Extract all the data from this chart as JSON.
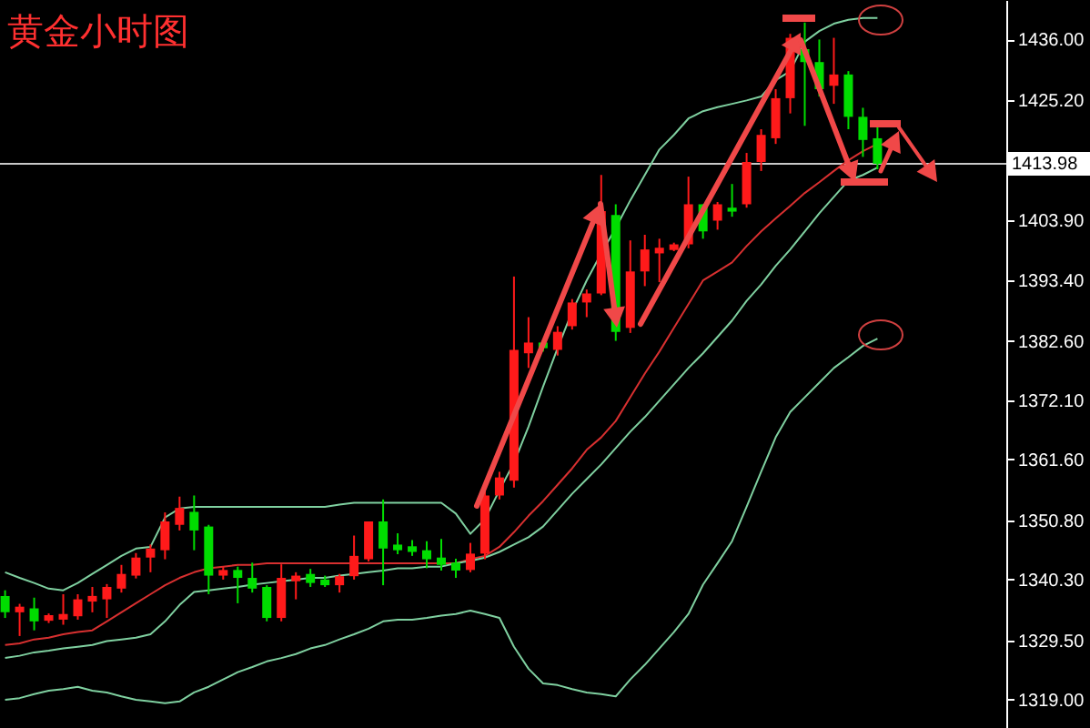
{
  "chart_data": {
    "type": "candlestick",
    "title": "黄金小时图",
    "categories": [
      null,
      null,
      null,
      null,
      null,
      null,
      null,
      null,
      null,
      null,
      null,
      null,
      null,
      null,
      null,
      null,
      null,
      null,
      null,
      null,
      null,
      null,
      null,
      null,
      null,
      null,
      null,
      null,
      null,
      null,
      null,
      null,
      null,
      null,
      null,
      null,
      null,
      null,
      null,
      null,
      null,
      null,
      null,
      null,
      null,
      null,
      null,
      null,
      null,
      null,
      null,
      null,
      null,
      null,
      null,
      null,
      null,
      null,
      null,
      null,
      null
    ],
    "ohlc": [
      [
        1337.4,
        1338.4,
        1333.5,
        1334.5
      ],
      [
        1334.5,
        1336.0,
        1330.3,
        1335.5
      ],
      [
        1335.2,
        1337.1,
        1331.3,
        1332.9
      ],
      [
        1333.0,
        1334.3,
        1332.6,
        1334.0
      ],
      [
        1333.2,
        1337.7,
        1332.3,
        1334.2
      ],
      [
        1333.8,
        1337.7,
        1333.2,
        1336.8
      ],
      [
        1336.4,
        1339.0,
        1334.5,
        1337.4
      ],
      [
        1336.8,
        1339.5,
        1333.5,
        1339.0
      ],
      [
        1338.7,
        1342.9,
        1338.0,
        1341.3
      ],
      [
        1341.0,
        1345.0,
        1340.5,
        1344.2
      ],
      [
        1344.2,
        1346.5,
        1341.6,
        1345.8
      ],
      [
        1345.5,
        1352.2,
        1343.9,
        1350.6
      ],
      [
        1350.0,
        1355.0,
        1349.0,
        1353.0
      ],
      [
        1352.3,
        1355.2,
        1345.5,
        1349.0
      ],
      [
        1349.7,
        1350.0,
        1337.7,
        1341.0
      ],
      [
        1341.0,
        1342.6,
        1340.3,
        1342.0
      ],
      [
        1342.0,
        1342.6,
        1336.1,
        1340.6
      ],
      [
        1340.6,
        1343.3,
        1338.0,
        1338.7
      ],
      [
        1339.0,
        1339.3,
        1332.9,
        1333.5
      ],
      [
        1333.5,
        1343.0,
        1332.9,
        1340.6
      ],
      [
        1340.0,
        1341.6,
        1336.8,
        1341.0
      ],
      [
        1341.3,
        1342.2,
        1339.0,
        1339.7
      ],
      [
        1340.3,
        1341.0,
        1339.0,
        1339.3
      ],
      [
        1339.3,
        1341.3,
        1338.0,
        1340.9
      ],
      [
        1340.9,
        1348.1,
        1340.3,
        1344.5
      ],
      [
        1343.9,
        1350.6,
        1343.5,
        1350.6
      ],
      [
        1350.6,
        1354.5,
        1339.3,
        1345.8
      ],
      [
        1346.5,
        1348.5,
        1344.8,
        1345.5
      ],
      [
        1346.2,
        1347.3,
        1344.5,
        1345.2
      ],
      [
        1345.5,
        1347.1,
        1342.3,
        1343.9
      ],
      [
        1344.2,
        1347.5,
        1341.9,
        1342.9
      ],
      [
        1343.3,
        1344.0,
        1340.6,
        1341.9
      ],
      [
        1342.0,
        1346.8,
        1341.6,
        1344.9
      ],
      [
        1344.9,
        1356.0,
        1343.9,
        1355.2
      ],
      [
        1355.2,
        1359.4,
        1354.5,
        1358.4
      ],
      [
        1357.8,
        1394.0,
        1356.6,
        1381.0
      ],
      [
        1380.4,
        1386.8,
        1377.8,
        1382.3
      ],
      [
        1382.3,
        1382.6,
        1380.7,
        1381.3
      ],
      [
        1381.0,
        1385.2,
        1380.0,
        1384.2
      ],
      [
        1385.2,
        1390.0,
        1384.6,
        1389.4
      ],
      [
        1389.4,
        1391.7,
        1386.8,
        1391.0
      ],
      [
        1391.0,
        1412.0,
        1390.7,
        1405.6
      ],
      [
        1404.9,
        1406.8,
        1382.6,
        1384.2
      ],
      [
        1384.9,
        1400.4,
        1384.0,
        1394.9
      ],
      [
        1394.9,
        1401.4,
        1392.3,
        1398.8
      ],
      [
        1398.1,
        1400.7,
        1393.0,
        1399.1
      ],
      [
        1398.7,
        1400.0,
        1398.5,
        1399.7
      ],
      [
        1399.7,
        1411.7,
        1399.0,
        1406.8
      ],
      [
        1406.8,
        1406.8,
        1400.7,
        1402.0
      ],
      [
        1403.9,
        1407.2,
        1402.3,
        1406.8
      ],
      [
        1406.2,
        1410.4,
        1404.6,
        1405.5
      ],
      [
        1406.8,
        1415.9,
        1406.2,
        1414.3
      ],
      [
        1414.3,
        1420.1,
        1412.7,
        1419.1
      ],
      [
        1418.5,
        1427.2,
        1417.5,
        1425.6
      ],
      [
        1425.6,
        1437.0,
        1422.9,
        1436.3
      ],
      [
        1434.3,
        1439.0,
        1420.7,
        1432.0
      ],
      [
        1432.0,
        1436.0,
        1425.9,
        1427.2
      ],
      [
        1427.8,
        1436.3,
        1424.6,
        1429.8
      ],
      [
        1429.8,
        1430.4,
        1420.1,
        1422.3
      ],
      [
        1422.3,
        1423.9,
        1415.2,
        1418.2
      ],
      [
        1418.5,
        1421.0,
        1413.0,
        1413.98
      ]
    ],
    "colors": [
      "#00dd00",
      "#ff1a1a",
      "#00dd00",
      "#ff1a1a",
      "#ff1a1a",
      "#ff1a1a",
      "#ff1a1a",
      "#ff1a1a",
      "#ff1a1a",
      "#ff1a1a",
      "#ff1a1a",
      "#ff1a1a",
      "#ff1a1a",
      "#00dd00",
      "#00dd00",
      "#ff1a1a",
      "#00dd00",
      "#00dd00",
      "#00dd00",
      "#ff1a1a",
      "#ff1a1a",
      "#00dd00",
      "#00dd00",
      "#ff1a1a",
      "#ff1a1a",
      "#ff1a1a",
      "#00dd00",
      "#00dd00",
      "#00dd00",
      "#00dd00",
      "#00dd00",
      "#00dd00",
      "#ff1a1a",
      "#ff1a1a",
      "#ff1a1a",
      "#ff1a1a",
      "#ff1a1a",
      "#00dd00",
      "#ff1a1a",
      "#ff1a1a",
      "#ff1a1a",
      "#ff1a1a",
      "#00dd00",
      "#ff1a1a",
      "#ff1a1a",
      "#ff1a1a",
      "#ff1a1a",
      "#ff1a1a",
      "#00dd00",
      "#ff1a1a",
      "#00dd00",
      "#ff1a1a",
      "#ff1a1a",
      "#ff1a1a",
      "#ff1a1a",
      "#00dd00",
      "#00dd00",
      "#ff1a1a",
      "#00dd00",
      "#00dd00",
      "#00dd00"
    ],
    "series": [
      {
        "type": "line",
        "color": "#7fd0a0",
        "values": [
          1341.6,
          1340.6,
          1339.7,
          1338.7,
          1338.4,
          1339.7,
          1341.3,
          1342.9,
          1344.5,
          1345.8,
          1346.1,
          1351.3,
          1352.9,
          1353.2,
          1353.2,
          1353.2,
          1353.2,
          1353.2,
          1353.2,
          1353.2,
          1353.2,
          1353.2,
          1353.2,
          1353.6,
          1353.9,
          1353.9,
          1353.9,
          1353.9,
          1353.9,
          1353.9,
          1353.9,
          1352.0,
          1348.4,
          1351.0,
          1356.1,
          1361.0,
          1367.4,
          1374.5,
          1381.3,
          1387.8,
          1393.3,
          1398.1,
          1402.6,
          1407.5,
          1412.0,
          1416.5,
          1419.1,
          1422.0,
          1423.3,
          1424.0,
          1424.6,
          1425.2,
          1425.9,
          1428.8,
          1430.4,
          1435.6,
          1437.5,
          1438.8,
          1439.5,
          1439.8,
          1439.8
        ]
      },
      {
        "type": "line",
        "color": "#d83030",
        "values": [
          1328.7,
          1329.0,
          1329.7,
          1330.0,
          1330.6,
          1331.0,
          1331.3,
          1332.9,
          1334.5,
          1336.1,
          1337.7,
          1339.3,
          1340.6,
          1341.6,
          1342.3,
          1342.6,
          1342.9,
          1342.9,
          1343.2,
          1343.2,
          1343.2,
          1343.2,
          1343.2,
          1343.2,
          1343.2,
          1343.2,
          1343.2,
          1343.2,
          1343.2,
          1343.2,
          1343.2,
          1343.2,
          1343.9,
          1344.5,
          1346.1,
          1348.7,
          1351.6,
          1354.2,
          1357.1,
          1360.0,
          1363.3,
          1365.5,
          1368.4,
          1372.6,
          1376.8,
          1380.7,
          1384.9,
          1389.1,
          1393.3,
          1394.9,
          1396.5,
          1399.4,
          1402.0,
          1404.3,
          1406.5,
          1408.8,
          1410.7,
          1412.7,
          1414.6,
          1416.2,
          1417.5
        ]
      },
      {
        "type": "line",
        "color": "#7fd0a0",
        "values": [
          1326.4,
          1326.8,
          1327.4,
          1327.7,
          1328.1,
          1328.4,
          1328.7,
          1329.4,
          1329.7,
          1330.0,
          1330.6,
          1332.9,
          1335.8,
          1338.1,
          1338.4,
          1338.7,
          1339.0,
          1339.4,
          1339.7,
          1340.0,
          1340.3,
          1340.6,
          1340.6,
          1341.0,
          1341.3,
          1341.6,
          1341.9,
          1342.3,
          1342.3,
          1342.6,
          1342.6,
          1343.2,
          1343.6,
          1344.2,
          1345.2,
          1346.5,
          1347.8,
          1349.7,
          1352.6,
          1355.5,
          1358.1,
          1360.7,
          1363.6,
          1366.5,
          1369.1,
          1372.0,
          1374.9,
          1377.8,
          1380.4,
          1383.3,
          1386.2,
          1389.7,
          1392.6,
          1395.9,
          1398.8,
          1402.0,
          1405.2,
          1408.1,
          1411.0,
          1412.0,
          1413.3
        ]
      },
      {
        "type": "line",
        "color": "#7fd0a0",
        "values": [
          1319.0,
          1319.3,
          1320.0,
          1320.6,
          1320.9,
          1321.3,
          1320.6,
          1320.3,
          1319.6,
          1319.0,
          1318.7,
          1318.4,
          1318.7,
          1320.3,
          1321.3,
          1322.6,
          1323.9,
          1324.8,
          1325.8,
          1326.4,
          1327.1,
          1328.1,
          1328.7,
          1329.7,
          1330.6,
          1331.6,
          1332.9,
          1333.2,
          1333.2,
          1333.5,
          1333.9,
          1334.2,
          1334.8,
          1334.2,
          1333.5,
          1328.4,
          1324.5,
          1321.9,
          1321.6,
          1320.9,
          1320.3,
          1320.0,
          1319.6,
          1322.6,
          1325.2,
          1328.1,
          1331.0,
          1334.2,
          1339.4,
          1343.2,
          1347.1,
          1353.2,
          1359.4,
          1365.5,
          1370.0,
          1372.6,
          1375.2,
          1377.8,
          1379.7,
          1381.7,
          1383.0
        ]
      }
    ],
    "ylim": [
      1314,
      1443
    ],
    "yticks": [
      {
        "value": 1319,
        "label": "1319.00"
      },
      {
        "value": 1329.5,
        "label": "1329.50"
      },
      {
        "value": 1340.3,
        "label": "1340.30"
      },
      {
        "value": 1350.8,
        "label": "1350.80"
      },
      {
        "value": 1361.6,
        "label": "1361.60"
      },
      {
        "value": 1372.1,
        "label": "1372.10"
      },
      {
        "value": 1382.6,
        "label": "1382.60"
      },
      {
        "value": 1393.4,
        "label": "1393.40"
      },
      {
        "value": 1403.9,
        "label": "1403.90"
      },
      {
        "value": 1425.2,
        "label": "1425.20"
      },
      {
        "value": 1436,
        "label": "1436.00"
      }
    ],
    "ref_lines": [
      {
        "axis": "y",
        "value": 1413.98,
        "label": "1413.98",
        "color": "#c8c8c8"
      }
    ],
    "tick_labels": "y"
  }
}
